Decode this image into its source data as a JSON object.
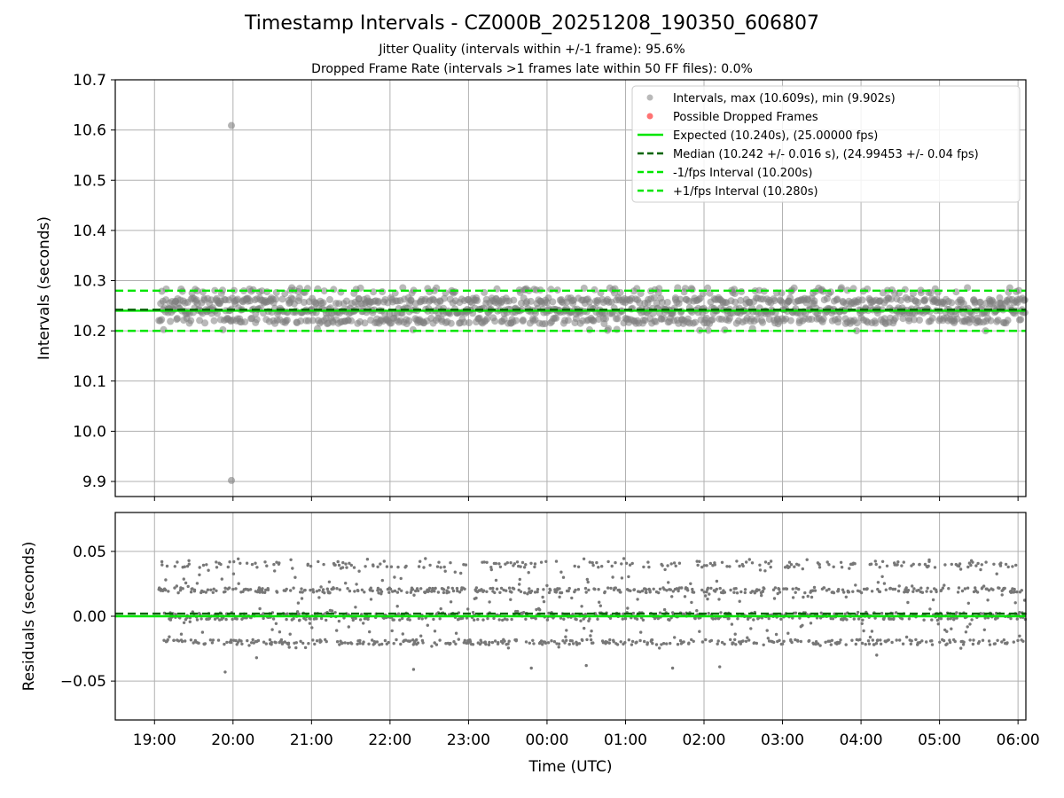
{
  "chart_data": {
    "title": "Timestamp Intervals - CZ000B_20251208_190350_606807",
    "subtitle_lines": [
      "Jitter Quality (intervals within +/-1 frame): 95.6%",
      "Dropped Frame Rate (intervals >1 frames late within 50 FF files): 0.0%"
    ],
    "x_axis": {
      "label": "Time (UTC)",
      "tick_labels": [
        "19:00",
        "20:00",
        "21:00",
        "22:00",
        "23:00",
        "00:00",
        "01:00",
        "02:00",
        "03:00",
        "04:00",
        "05:00",
        "06:00"
      ],
      "range_hours_since_1900": [
        -0.5,
        11.1
      ]
    },
    "panels": [
      {
        "type": "scatter",
        "ylabel": "Intervals (seconds)",
        "ylim": [
          9.87,
          10.7
        ],
        "yticks": [
          9.9,
          10.0,
          10.1,
          10.2,
          10.3,
          10.4,
          10.5,
          10.6,
          10.7
        ],
        "ytick_labels": [
          "9.9",
          "10.0",
          "10.1",
          "10.2",
          "10.3",
          "10.4",
          "10.5",
          "10.6",
          "10.7"
        ],
        "grid": true,
        "series": [
          {
            "name": "Intervals, max (10.609s), min (9.902s)",
            "kind": "scatter",
            "color": "#808080",
            "bands": [
              10.22,
              10.24,
              10.26,
              10.28
            ],
            "x_start": 0.06,
            "x_end": 11.1
          },
          {
            "name": "Possible Dropped Frames",
            "kind": "scatter",
            "color": "#ff0000",
            "values": []
          }
        ],
        "outliers": [
          {
            "x": 0.98,
            "y": 10.609
          },
          {
            "x": 0.98,
            "y": 9.902
          }
        ],
        "hlines": [
          {
            "name": "Expected (10.240s), (25.00000 fps)",
            "y": 10.24,
            "color": "#00e600",
            "style": "solid"
          },
          {
            "name": "Median (10.242 +/- 0.016 s), (24.99453 +/- 0.04 fps)",
            "y": 10.242,
            "color": "#006400",
            "style": "dashed"
          },
          {
            "name": "-1/fps Interval (10.200s)",
            "y": 10.2,
            "color": "#00e600",
            "style": "dashed"
          },
          {
            "name": "+1/fps Interval (10.280s)",
            "y": 10.28,
            "color": "#00e600",
            "style": "dashed"
          }
        ],
        "legend_position": "top-right"
      },
      {
        "type": "scatter",
        "ylabel": "Residuals (seconds)",
        "ylim": [
          -0.08,
          0.08
        ],
        "yticks": [
          -0.05,
          0.0,
          0.05
        ],
        "ytick_labels": [
          "−0.05",
          "0.00",
          "0.05"
        ],
        "grid": true,
        "bands": [
          -0.02,
          0.0,
          0.02,
          0.04
        ],
        "hlines": [
          {
            "y": 0.0,
            "color": "#00e600",
            "style": "solid"
          },
          {
            "y": 0.002,
            "color": "#006400",
            "style": "dashed"
          }
        ]
      }
    ]
  }
}
